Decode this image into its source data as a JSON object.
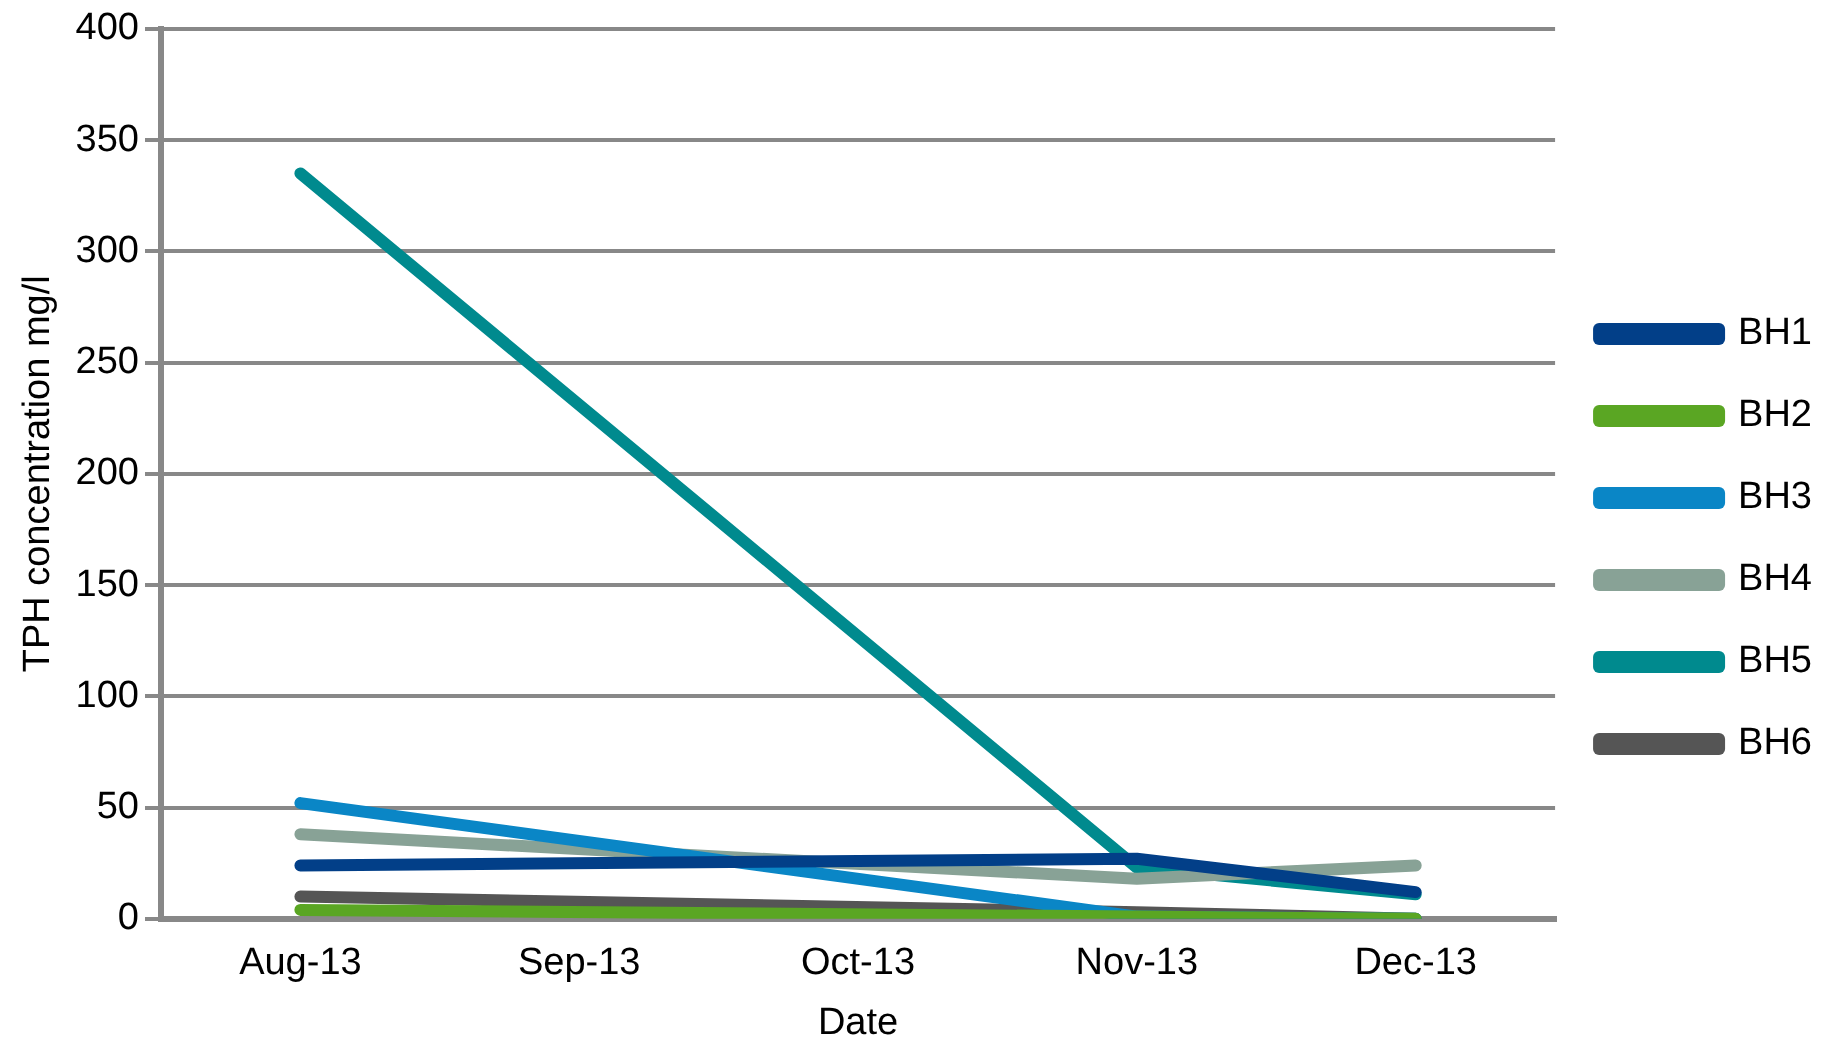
{
  "chart_data": {
    "type": "line",
    "xlabel": "Date",
    "ylabel": "TPH concentration mg/l",
    "categories": [
      "Aug-13",
      "Sep-13",
      "Oct-13",
      "Nov-13",
      "Dec-13"
    ],
    "series": [
      {
        "name": "BH1",
        "color": "#023f88",
        "values": [
          24,
          null,
          null,
          27,
          12
        ]
      },
      {
        "name": "BH2",
        "color": "#5aa623",
        "values": [
          4,
          null,
          null,
          1,
          0
        ]
      },
      {
        "name": "BH3",
        "color": "#0a86c6",
        "values": [
          52,
          null,
          null,
          1,
          0
        ]
      },
      {
        "name": "BH4",
        "color": "#88a296",
        "values": [
          38,
          null,
          null,
          18,
          24
        ]
      },
      {
        "name": "BH5",
        "color": "#008a8e",
        "values": [
          335,
          null,
          null,
          23,
          11
        ]
      },
      {
        "name": "BH6",
        "color": "#555555",
        "values": [
          10,
          null,
          null,
          3,
          0
        ]
      }
    ],
    "ylim": [
      0,
      400
    ],
    "yticks": [
      0,
      50,
      100,
      150,
      200,
      250,
      300,
      350,
      400
    ],
    "grid": "y",
    "legend": "right",
    "marker": "none",
    "line_style": "solid"
  }
}
